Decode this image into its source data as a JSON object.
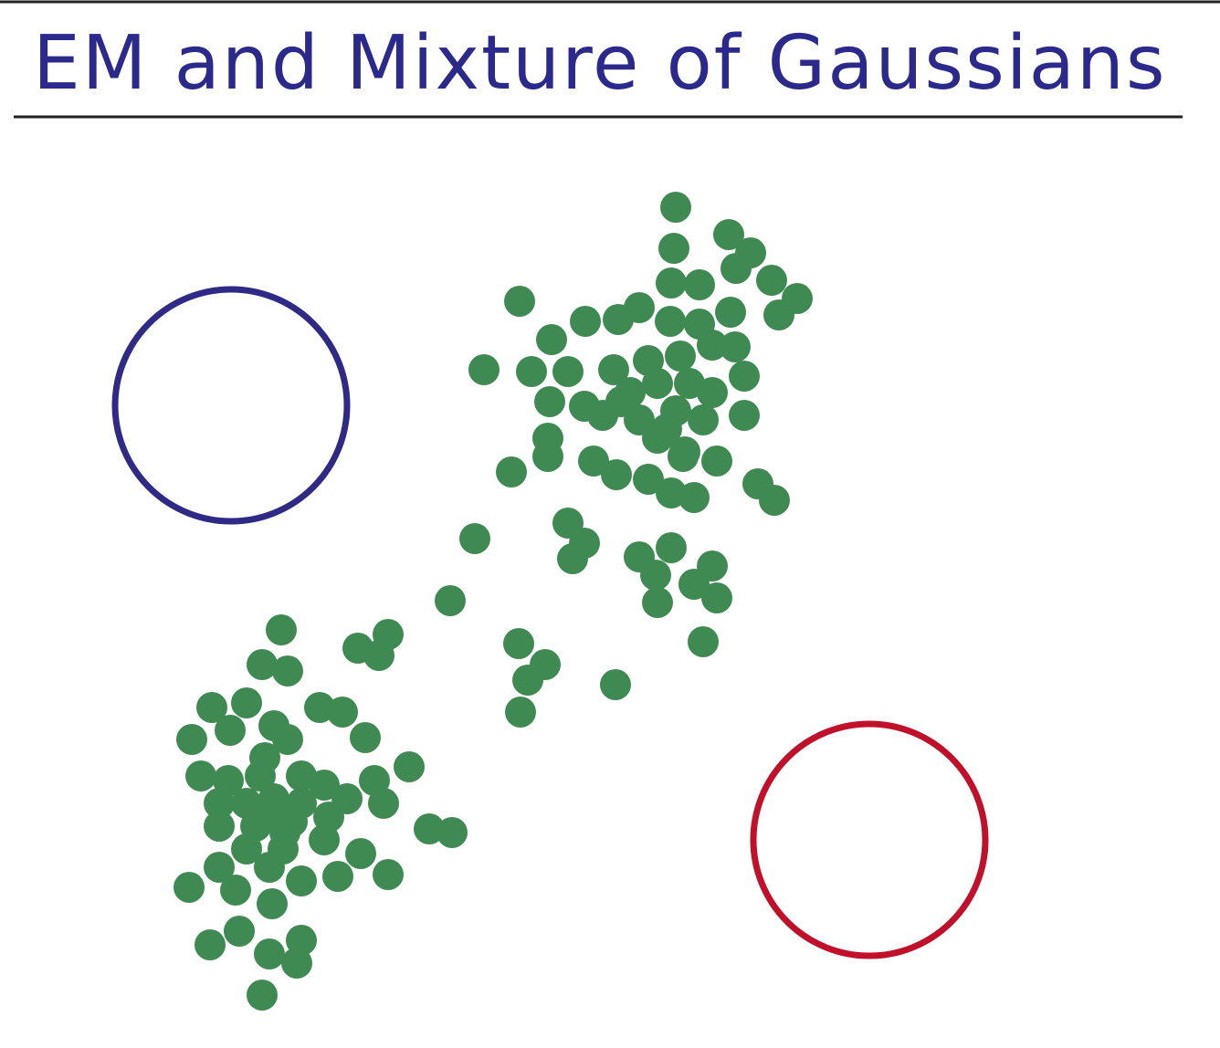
{
  "header": {
    "title": "EM and Mixture of Gaussians"
  }
}
